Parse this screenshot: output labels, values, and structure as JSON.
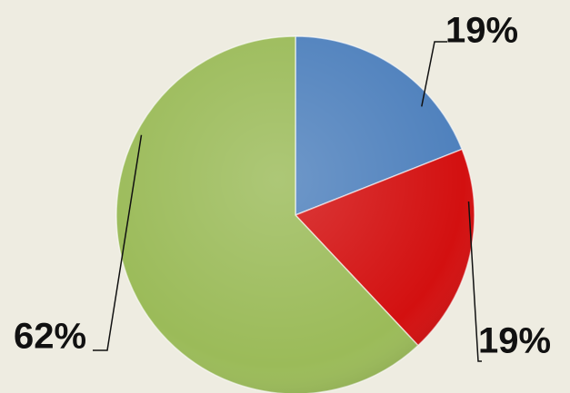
{
  "chart_data": {
    "type": "pie",
    "values": [
      19,
      19,
      62
    ],
    "value_labels": [
      "19%",
      "19%",
      "62%"
    ],
    "colors": [
      "#4f81bd",
      "#d31010",
      "#9bbb59"
    ],
    "start_angle": 0,
    "direction": "clockwise"
  }
}
